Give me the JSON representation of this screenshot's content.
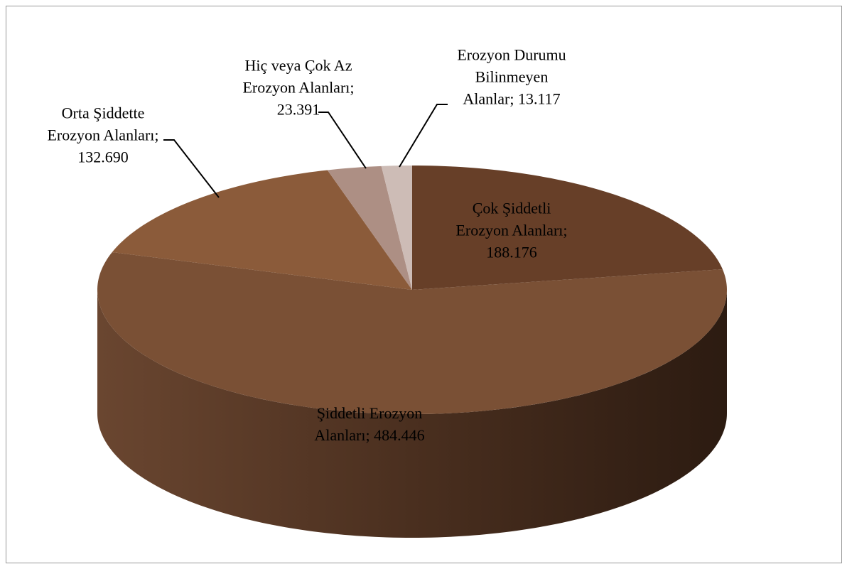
{
  "chart_data": {
    "type": "pie3d",
    "categories": [
      "Çok Şiddetli Erozyon Alanları",
      "Şiddetli Erozyon Alanları",
      "Orta Şiddette Erozyon Alanları",
      "Hiç veya Çok Az Erozyon Alanları",
      "Erozyon Durumu Bilinmeyen Alanlar"
    ],
    "values": [
      188176,
      484446,
      132690,
      23391,
      13117
    ],
    "value_labels": [
      "188.176",
      "484.446",
      "132.690",
      "23.391",
      "13.117"
    ],
    "label_separator": "; ",
    "colors": [
      "#673f28",
      "#7a5035",
      "#8b5b3a",
      "#ad8f84",
      "#cdbcb6"
    ]
  }
}
